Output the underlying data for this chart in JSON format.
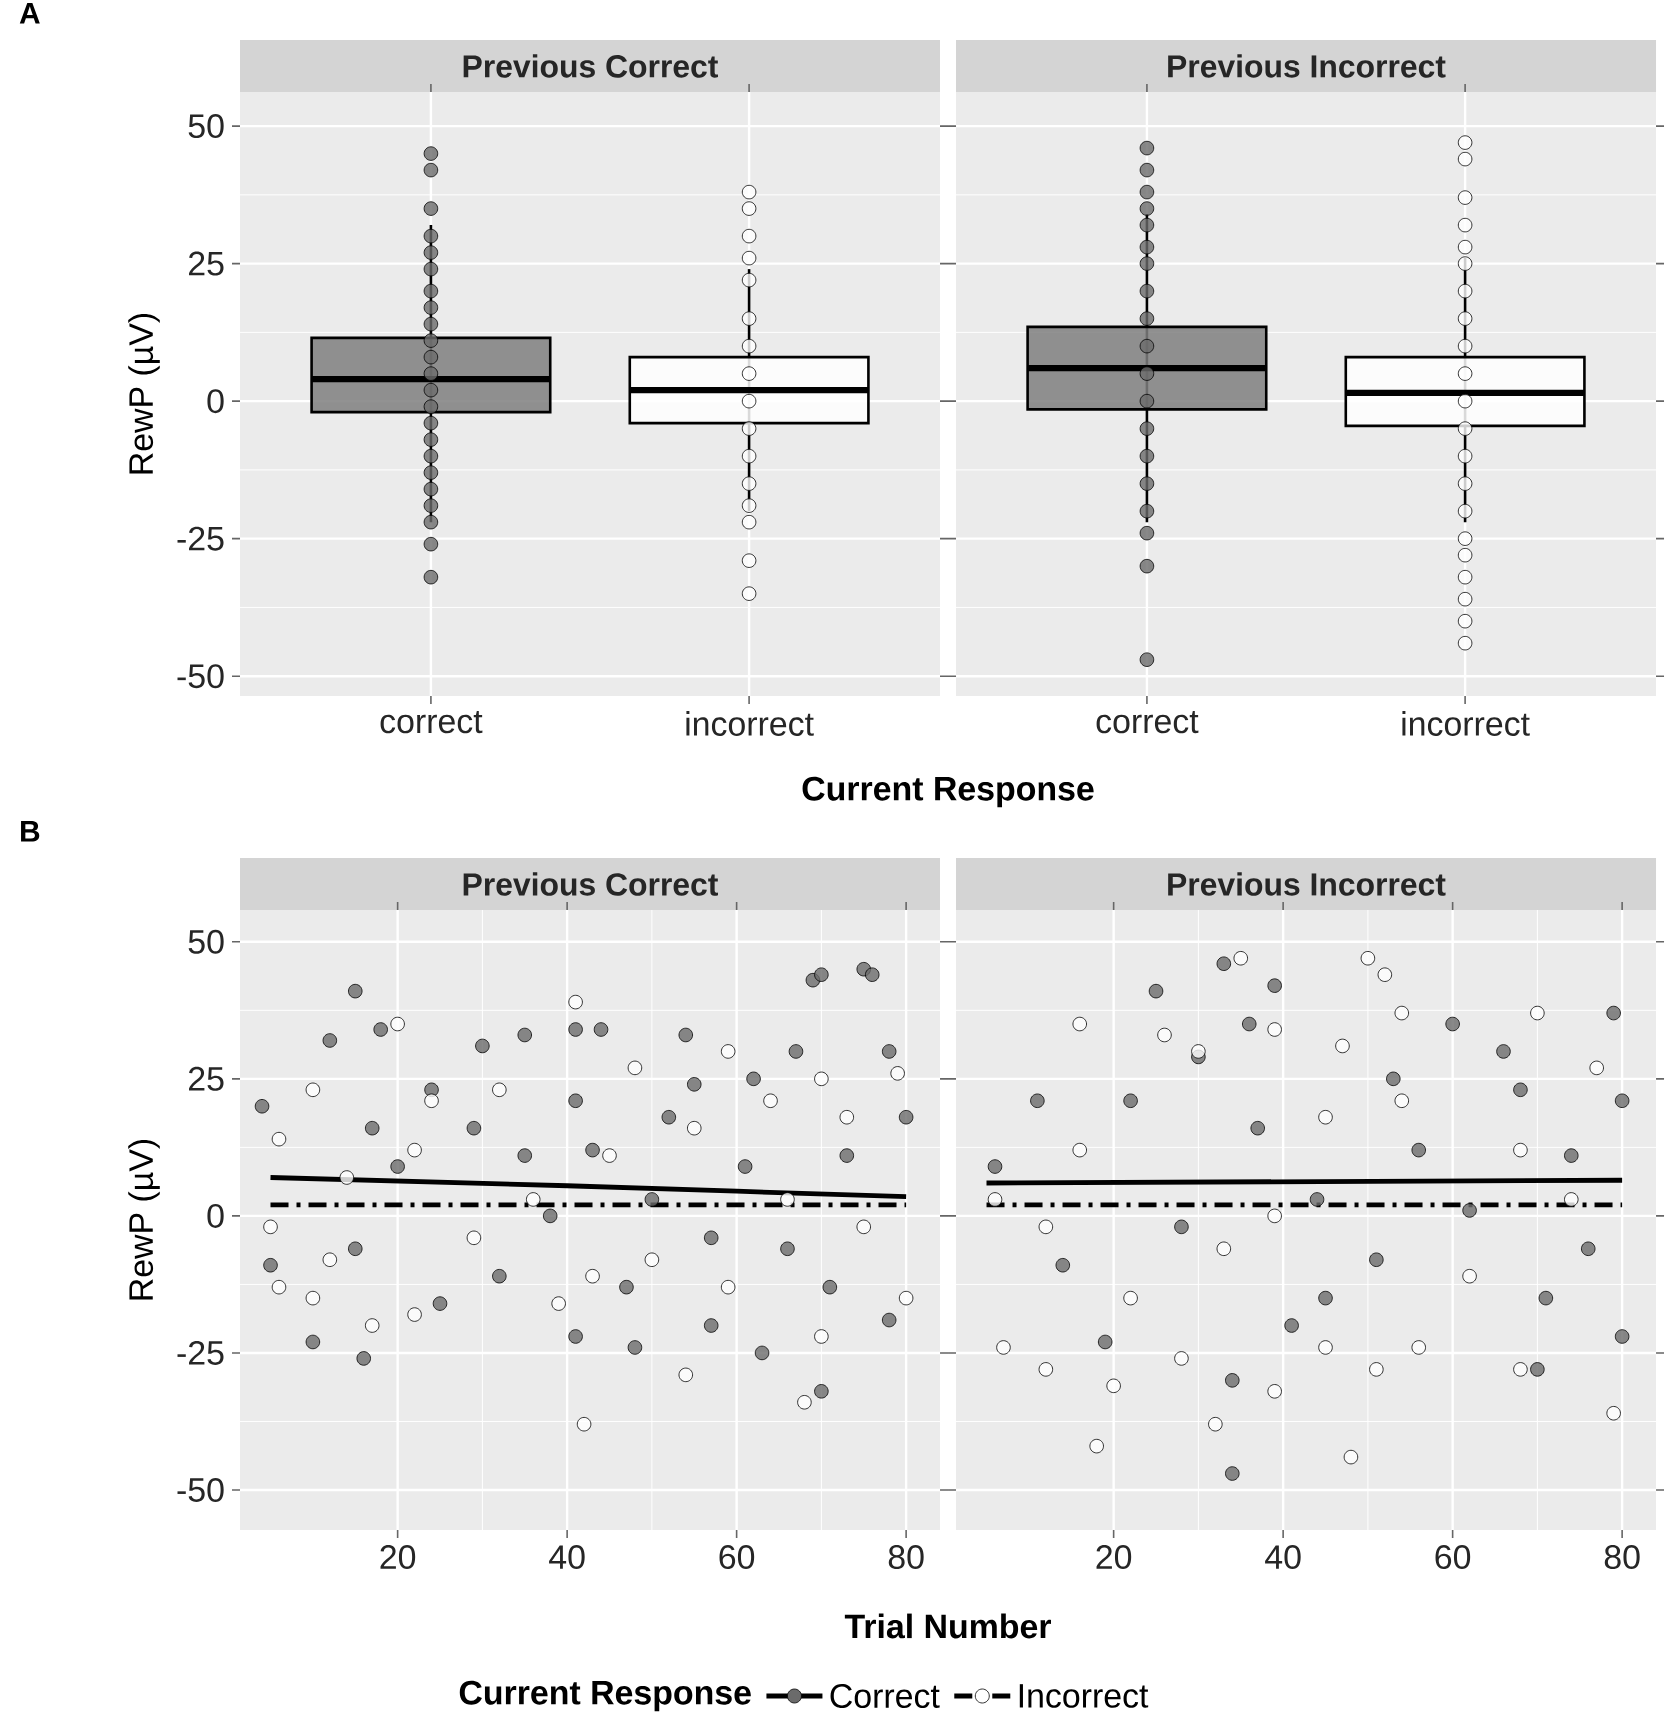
{
  "chart_data": [
    {
      "type": "box",
      "title": "Previous Correct",
      "xlabel": "Current Response",
      "ylabel": "RewP (µV)",
      "annotations": [
        "A"
      ],
      "categories": [
        "correct",
        "incorrect"
      ],
      "colors": [
        "#7f7f7f",
        "#ffffff"
      ],
      "boxes": [
        {
          "low": -22,
          "q1": -2,
          "median": 4,
          "q3": 11.5,
          "high": 32
        },
        {
          "low": -20,
          "q1": -4,
          "median": 2,
          "q3": 8,
          "high": 24
        }
      ],
      "ylim": [
        -53.6,
        56.2
      ],
      "yticks": [
        -50,
        -25,
        0,
        25,
        50
      ],
      "grid": true,
      "series": [
        {
          "type": "scatter",
          "marker": "circle",
          "color": "#6b6b6b",
          "x": [
            "correct",
            "correct",
            "correct",
            "correct",
            "correct",
            "correct",
            "correct",
            "correct",
            "correct",
            "correct",
            "correct",
            "correct",
            "correct",
            "correct",
            "correct",
            "correct",
            "correct",
            "correct",
            "correct",
            "correct",
            "correct",
            "correct",
            "correct"
          ],
          "values": [
            45,
            42,
            35,
            30,
            27,
            24,
            20,
            17,
            14,
            11,
            8,
            5,
            2,
            -1,
            -4,
            -7,
            -10,
            -13,
            -16,
            -19,
            -22,
            -26,
            -32
          ]
        },
        {
          "type": "scatter",
          "marker": "circle",
          "color": "#ffffff",
          "x": [
            "incorrect",
            "incorrect",
            "incorrect",
            "incorrect",
            "incorrect",
            "incorrect",
            "incorrect",
            "incorrect",
            "incorrect",
            "incorrect",
            "incorrect",
            "incorrect",
            "incorrect",
            "incorrect",
            "incorrect",
            "incorrect"
          ],
          "values": [
            38,
            35,
            30,
            26,
            22,
            15,
            10,
            5,
            0,
            -5,
            -10,
            -15,
            -19,
            -22,
            -29,
            -35
          ]
        }
      ]
    },
    {
      "type": "box",
      "title": "Previous Incorrect",
      "categories": [
        "correct",
        "incorrect"
      ],
      "colors": [
        "#7f7f7f",
        "#ffffff"
      ],
      "boxes": [
        {
          "low": -22,
          "q1": -1.5,
          "median": 6,
          "q3": 13.5,
          "high": 34
        },
        {
          "low": -22,
          "q1": -4.5,
          "median": 1.5,
          "q3": 8,
          "high": 26
        }
      ],
      "ylim": [
        -53.6,
        56.2
      ],
      "yticks": [
        -50,
        -25,
        0,
        25,
        50
      ],
      "grid": true,
      "tick_labels": "x",
      "series": [
        {
          "type": "scatter",
          "marker": "circle",
          "color": "#6b6b6b",
          "x": [
            "correct",
            "correct",
            "correct",
            "correct",
            "correct",
            "correct",
            "correct",
            "correct",
            "correct",
            "correct",
            "correct",
            "correct",
            "correct",
            "correct",
            "correct",
            "correct",
            "correct",
            "correct",
            "correct"
          ],
          "values": [
            46,
            42,
            38,
            35,
            32,
            28,
            25,
            20,
            15,
            10,
            5,
            0,
            -5,
            -10,
            -15,
            -20,
            -24,
            -30,
            -47
          ]
        },
        {
          "type": "scatter",
          "marker": "circle",
          "color": "#ffffff",
          "x": [
            "incorrect",
            "incorrect",
            "incorrect",
            "incorrect",
            "incorrect",
            "incorrect",
            "incorrect",
            "incorrect",
            "incorrect",
            "incorrect",
            "incorrect",
            "incorrect",
            "incorrect",
            "incorrect",
            "incorrect",
            "incorrect",
            "incorrect",
            "incorrect",
            "incorrect",
            "incorrect",
            "incorrect"
          ],
          "values": [
            47,
            44,
            37,
            32,
            28,
            25,
            20,
            15,
            10,
            5,
            0,
            -5,
            -10,
            -15,
            -20,
            -25,
            -28,
            -32,
            -36,
            -40,
            -44
          ]
        }
      ]
    },
    {
      "type": "scatter",
      "title": "Previous Correct",
      "xlabel": "Trial Number",
      "ylabel": "RewP (µV)",
      "annotations": [
        "B"
      ],
      "xlim": [
        1.4,
        84
      ],
      "xticks": [
        20,
        40,
        60,
        80
      ],
      "ylim": [
        -57.3,
        55.8
      ],
      "yticks": [
        -50,
        -25,
        0,
        25,
        50
      ],
      "grid": true,
      "series": [
        {
          "marker": "circle",
          "color": "#6b6b6b",
          "x": [
            15,
            69,
            70,
            75,
            76,
            16,
            10,
            70,
            63,
            48,
            41,
            54,
            41,
            44,
            35,
            30,
            12,
            18,
            62,
            67,
            78,
            4,
            24,
            55,
            80,
            5,
            25,
            57,
            78,
            32,
            43,
            50,
            66,
            38,
            61,
            20,
            15,
            47,
            73,
            52,
            71,
            17,
            29,
            35,
            57,
            41
          ],
          "values": [
            41,
            43,
            44,
            45,
            44,
            -26,
            -23,
            -32,
            -25,
            -24,
            -22,
            33,
            34,
            34,
            33,
            31,
            32,
            34,
            25,
            30,
            30,
            20,
            23,
            24,
            18,
            -9,
            -16,
            -20,
            -19,
            -11,
            12,
            3,
            -6,
            0,
            9,
            9,
            -6,
            -13,
            11,
            18,
            -13,
            16,
            16,
            11,
            -4,
            21
          ]
        },
        {
          "marker": "circle",
          "color": "#ffffff",
          "x": [
            41,
            20,
            10,
            42,
            54,
            68,
            70,
            6,
            10,
            17,
            22,
            39,
            59,
            70,
            48,
            79,
            80,
            5,
            24,
            32,
            45,
            55,
            64,
            36,
            50,
            66,
            14,
            22,
            29,
            59,
            75,
            6,
            12,
            43,
            73
          ],
          "values": [
            39,
            35,
            23,
            -38,
            -29,
            -34,
            -22,
            -13,
            -15,
            -20,
            -18,
            -16,
            30,
            25,
            27,
            26,
            -15,
            -2,
            21,
            23,
            11,
            16,
            21,
            3,
            -8,
            3,
            7,
            12,
            -4,
            -13,
            -2,
            14,
            -8,
            -11,
            18
          ]
        },
        {
          "type": "line",
          "color": "#000000",
          "line_style": "solid",
          "x": [
            5,
            40,
            60,
            80
          ],
          "values": [
            7,
            5.5,
            4.5,
            3.5
          ]
        },
        {
          "type": "line",
          "color": "#000000",
          "line_style": "dashed",
          "x": [
            5,
            80
          ],
          "values": [
            2,
            2
          ]
        }
      ]
    },
    {
      "type": "scatter",
      "title": "Previous Incorrect",
      "xlim": [
        1.4,
        84
      ],
      "xticks": [
        20,
        40,
        60,
        80
      ],
      "ylim": [
        -57.3,
        55.8
      ],
      "yticks": [
        -50,
        -25,
        0,
        25,
        50
      ],
      "grid": true,
      "tick_labels": "x",
      "legend": "bottom",
      "legend_title": "Current Response",
      "series": [
        {
          "marker": "circle",
          "color": "#6b6b6b",
          "x": [
            33,
            39,
            25,
            34,
            34,
            19,
            60,
            79,
            80,
            70,
            36,
            66,
            41,
            6,
            51,
            28,
            56,
            68,
            22,
            45,
            62,
            74,
            14,
            37,
            53,
            76,
            44,
            30,
            11,
            71,
            80
          ],
          "values": [
            46,
            42,
            41,
            -30,
            -47,
            -23,
            35,
            37,
            -22,
            -28,
            35,
            30,
            -20,
            9,
            -8,
            -2,
            12,
            23,
            21,
            -15,
            1,
            11,
            -9,
            16,
            25,
            -6,
            3,
            29,
            21,
            -15,
            21
          ]
        },
        {
          "marker": "circle",
          "color": "#ffffff",
          "x": [
            35,
            50,
            52,
            54,
            70,
            51,
            48,
            18,
            32,
            20,
            7,
            12,
            39,
            79,
            16,
            26,
            30,
            39,
            47,
            68,
            56,
            45,
            28,
            6,
            16,
            33,
            45,
            62,
            74,
            22,
            54,
            68,
            39,
            12,
            77
          ],
          "values": [
            47,
            47,
            44,
            37,
            37,
            -28,
            -44,
            -42,
            -38,
            -31,
            -24,
            -28,
            -32,
            -36,
            35,
            33,
            30,
            34,
            31,
            -28,
            -24,
            -24,
            -26,
            3,
            12,
            -6,
            18,
            -11,
            3,
            -15,
            21,
            12,
            0,
            -2,
            27
          ]
        },
        {
          "type": "line",
          "name": "Correct",
          "color": "#000000",
          "line_style": "solid",
          "x": [
            5,
            80
          ],
          "values": [
            6,
            6.5
          ]
        },
        {
          "type": "line",
          "name": "Incorrect",
          "color": "#000000",
          "line_style": "dashed",
          "x": [
            5,
            80
          ],
          "values": [
            2,
            2
          ]
        }
      ]
    }
  ]
}
